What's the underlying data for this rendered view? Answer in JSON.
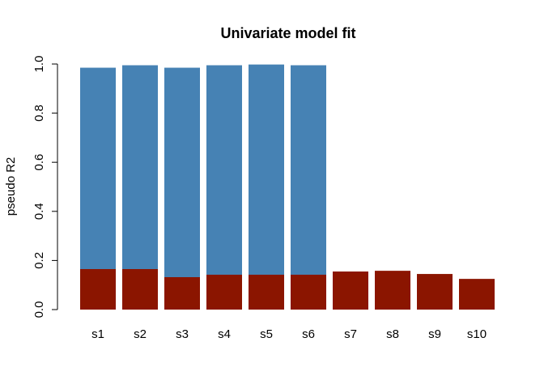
{
  "chart_data": {
    "type": "bar",
    "stacking": "overlay",
    "title": "Univariate model fit",
    "xlabel": "",
    "ylabel": "pseudo R2",
    "ylim": [
      0,
      1.0
    ],
    "yticks": [
      "0.0",
      "0.2",
      "0.4",
      "0.6",
      "0.8",
      "1.0"
    ],
    "categories": [
      "s1",
      "s2",
      "s3",
      "s4",
      "s5",
      "s6",
      "s7",
      "s8",
      "s9",
      "s10"
    ],
    "series": [
      {
        "color": "#4682B4",
        "values": [
          0.985,
          0.995,
          0.985,
          0.995,
          0.998,
          0.995,
          null,
          null,
          null,
          null
        ]
      },
      {
        "color": "#8B1500",
        "values": [
          0.165,
          0.165,
          0.132,
          0.142,
          0.142,
          0.142,
          0.155,
          0.158,
          0.145,
          0.125
        ]
      }
    ],
    "grid": false,
    "legend": "none"
  }
}
